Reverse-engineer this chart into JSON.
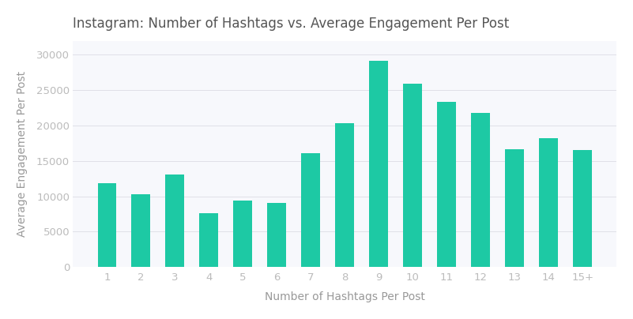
{
  "title": "Instagram: Number of Hashtags vs. Average Engagement Per Post",
  "xlabel": "Number of Hashtags Per Post",
  "ylabel": "Average Engagement Per Post",
  "categories": [
    "1",
    "2",
    "3",
    "4",
    "5",
    "6",
    "7",
    "8",
    "9",
    "10",
    "11",
    "12",
    "13",
    "14",
    "15+"
  ],
  "values": [
    11800,
    10300,
    13100,
    7600,
    9400,
    9100,
    16100,
    20300,
    29100,
    25900,
    23400,
    21800,
    16600,
    18200,
    16500
  ],
  "bar_color": "#1DC9A4",
  "background_color": "#ffffff",
  "plot_area_color": "#f7f8fc",
  "title_color": "#555555",
  "axis_label_color": "#999999",
  "tick_color": "#bbbbbb",
  "ylim": [
    0,
    32000
  ],
  "yticks": [
    0,
    5000,
    10000,
    15000,
    20000,
    25000,
    30000
  ],
  "bar_width": 0.55,
  "title_fontsize": 12,
  "label_fontsize": 10,
  "tick_fontsize": 9.5
}
